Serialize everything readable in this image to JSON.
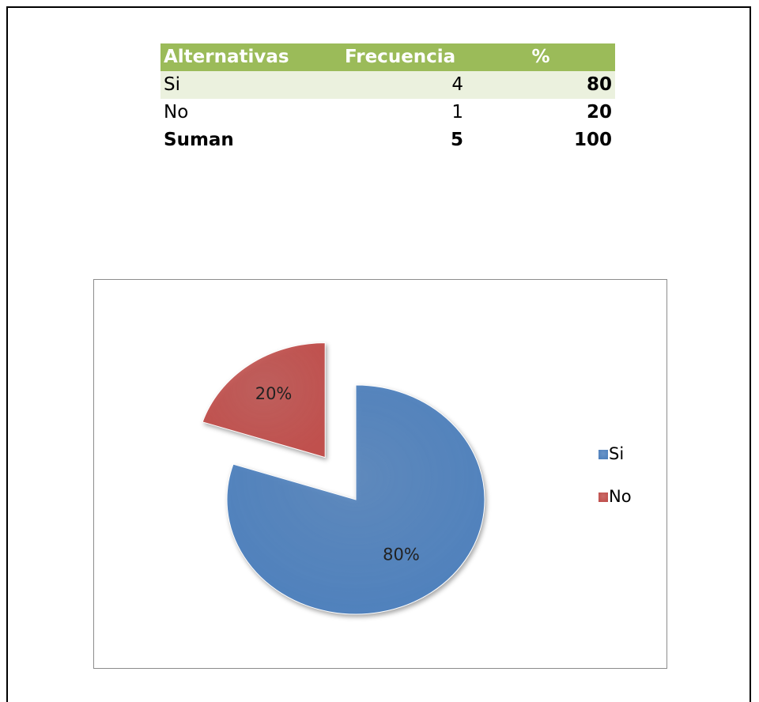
{
  "table": {
    "header": [
      "Alternativas",
      "Frecuencia",
      "%"
    ],
    "rows": [
      [
        "Si",
        "4",
        "80"
      ],
      [
        "No",
        "1",
        "20"
      ],
      [
        "Suman",
        "5",
        "100"
      ]
    ]
  },
  "chart_data": {
    "type": "pie",
    "categories": [
      "Si",
      "No"
    ],
    "values": [
      80,
      20
    ],
    "value_labels": [
      "80%",
      "20%"
    ],
    "colors": [
      "#4f81bd",
      "#c0504d"
    ],
    "legend": "right"
  }
}
